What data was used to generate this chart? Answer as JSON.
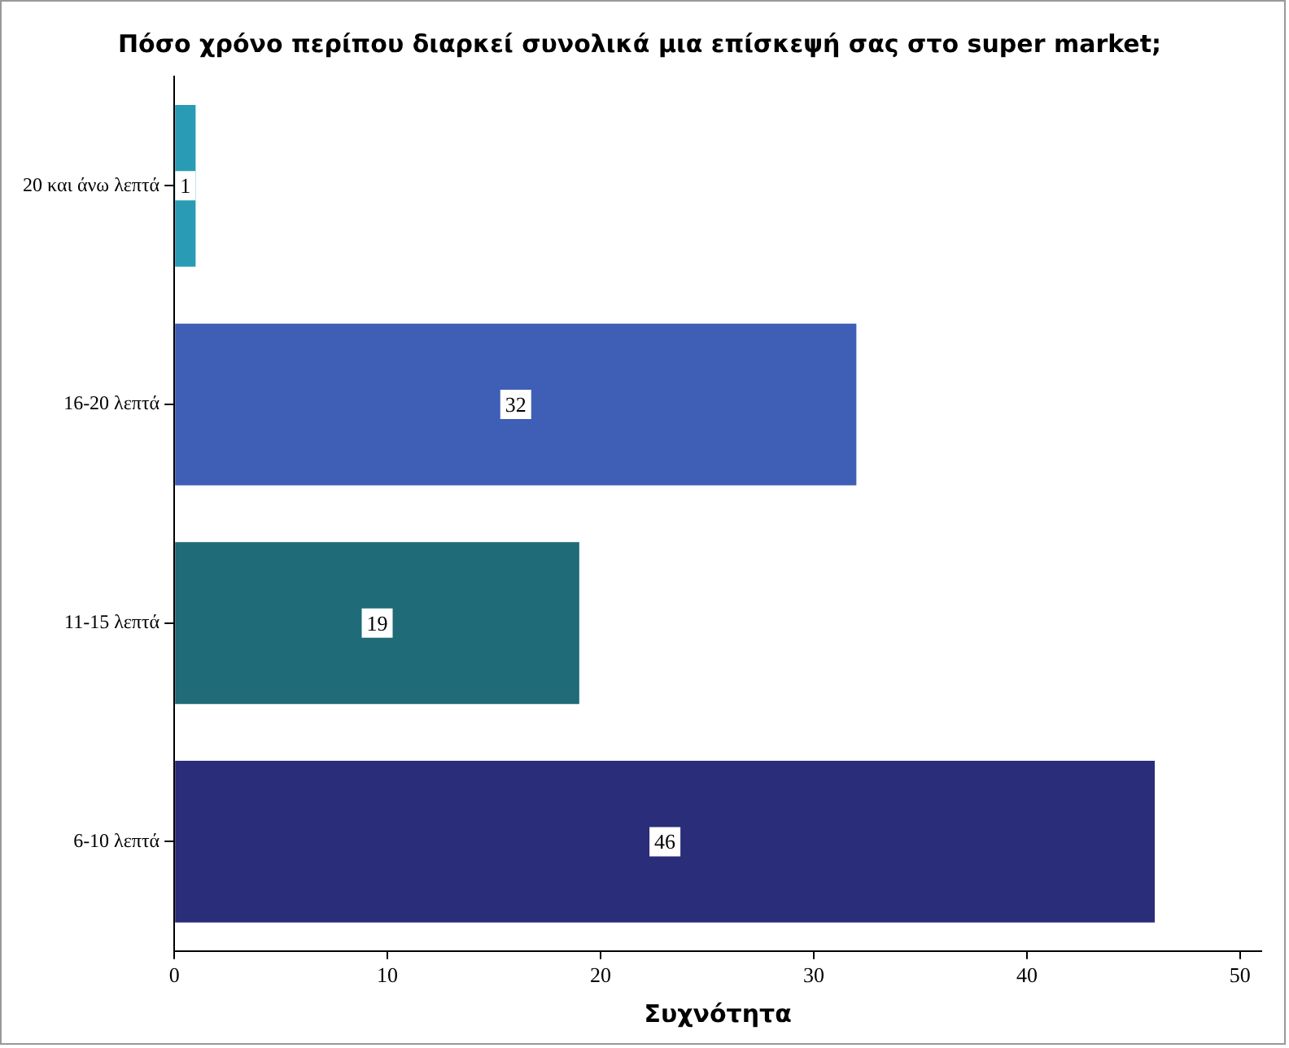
{
  "chart_data": {
    "type": "bar",
    "orientation": "horizontal",
    "title": "Πόσο χρόνο περίπου διαρκεί συνολικά μια επίσκεψή σας στο super market;",
    "xlabel": "Συχνότητα",
    "categories": [
      "20 και άνω λεπτά",
      "16-20 λεπτά",
      "11-15 λεπτά",
      "6-10 λεπτά"
    ],
    "values": [
      1,
      32,
      19,
      46
    ],
    "colors": [
      "#2a9bb5",
      "#3e5fb5",
      "#1f6b78",
      "#2a2d7a"
    ],
    "xlim": [
      0,
      51
    ],
    "xticks": [
      0,
      10,
      20,
      30,
      40,
      50
    ],
    "grid": false,
    "legend": false,
    "data_labels": true
  }
}
